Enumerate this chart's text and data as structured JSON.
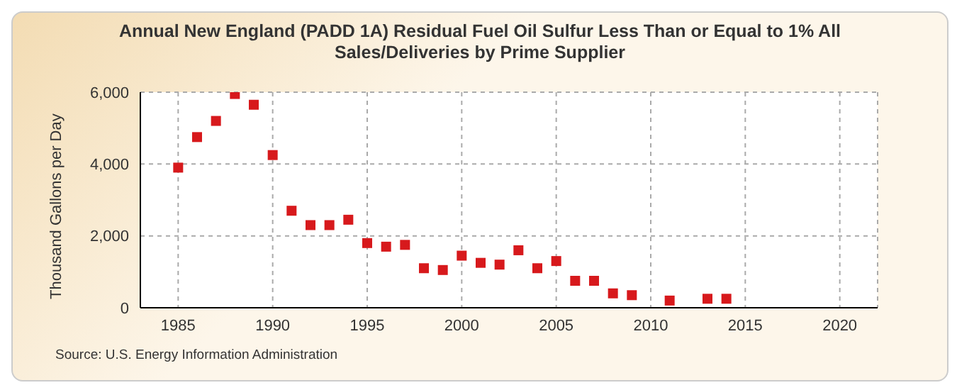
{
  "chart_data": {
    "type": "scatter",
    "title": "Annual New England (PADD 1A) Residual Fuel Oil Sulfur Less Than or Equal to 1% All Sales/Deliveries by Prime Supplier",
    "ylabel": "Thousand Gallons per Day",
    "annotations": [
      "Source: U.S. Energy Information Administration"
    ],
    "x": [
      1985,
      1986,
      1987,
      1988,
      1989,
      1990,
      1991,
      1992,
      1993,
      1994,
      1995,
      1996,
      1997,
      1998,
      1999,
      2000,
      2001,
      2002,
      2003,
      2004,
      2005,
      2006,
      2007,
      2008,
      2009,
      2011,
      2013,
      2014
    ],
    "series": [
      {
        "color": "#d7191c",
        "values": [
          3900,
          4750,
          5200,
          5950,
          5650,
          4250,
          2700,
          2300,
          2300,
          2450,
          1800,
          1700,
          1750,
          1100,
          1050,
          1450,
          1250,
          1200,
          1600,
          1100,
          1300,
          750,
          750,
          400,
          350,
          200,
          250,
          250
        ]
      }
    ],
    "xlim": [
      1983,
      2022
    ],
    "xticks": [
      1985,
      1990,
      1995,
      2000,
      2005,
      2010,
      2015,
      2020
    ],
    "ylim": [
      0,
      6000
    ],
    "yticks": [
      0,
      {
        "value": 2000,
        "label": "2,000"
      },
      {
        "value": 4000,
        "label": "4,000"
      },
      {
        "value": 6000,
        "label": "6,000"
      }
    ],
    "grid": true,
    "legend": false,
    "marker": "square"
  }
}
